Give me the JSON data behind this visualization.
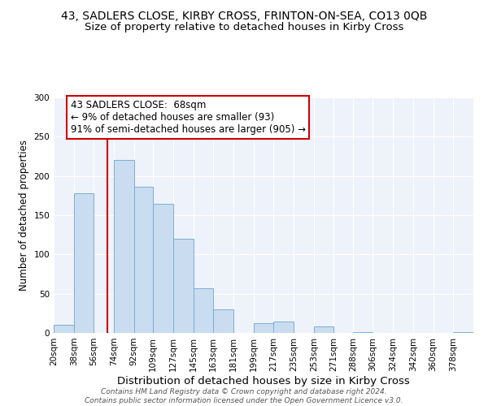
{
  "title": "43, SADLERS CLOSE, KIRBY CROSS, FRINTON-ON-SEA, CO13 0QB",
  "subtitle": "Size of property relative to detached houses in Kirby Cross",
  "xlabel": "Distribution of detached houses by size in Kirby Cross",
  "ylabel": "Number of detached properties",
  "bar_labels": [
    "20sqm",
    "38sqm",
    "56sqm",
    "74sqm",
    "92sqm",
    "109sqm",
    "127sqm",
    "145sqm",
    "163sqm",
    "181sqm",
    "199sqm",
    "217sqm",
    "235sqm",
    "253sqm",
    "271sqm",
    "288sqm",
    "306sqm",
    "324sqm",
    "342sqm",
    "360sqm",
    "378sqm"
  ],
  "bar_values": [
    10,
    178,
    0,
    220,
    186,
    165,
    120,
    57,
    30,
    0,
    12,
    14,
    0,
    8,
    0,
    1,
    0,
    0,
    0,
    0,
    1
  ],
  "bar_color": "#c9dcf0",
  "bar_edge_color": "#7bafd4",
  "ylim": [
    0,
    300
  ],
  "yticks": [
    0,
    50,
    100,
    150,
    200,
    250,
    300
  ],
  "property_line_x": 68,
  "bin_edges": [
    20,
    38,
    56,
    74,
    92,
    109,
    127,
    145,
    163,
    181,
    199,
    217,
    235,
    253,
    271,
    288,
    306,
    324,
    342,
    360,
    378,
    396
  ],
  "annotation_title": "43 SADLERS CLOSE:  68sqm",
  "annotation_line1": "← 9% of detached houses are smaller (93)",
  "annotation_line2": "91% of semi-detached houses are larger (905) →",
  "annotation_box_color": "#ffffff",
  "annotation_box_edge": "#cc0000",
  "vline_color": "#cc0000",
  "footer1": "Contains HM Land Registry data © Crown copyright and database right 2024.",
  "footer2": "Contains public sector information licensed under the Open Government Licence v3.0.",
  "title_fontsize": 10,
  "subtitle_fontsize": 9.5,
  "xlabel_fontsize": 9.5,
  "ylabel_fontsize": 8.5,
  "tick_fontsize": 7.5,
  "annotation_fontsize": 8.5,
  "footer_fontsize": 6.5,
  "bg_color": "#eef2fa"
}
